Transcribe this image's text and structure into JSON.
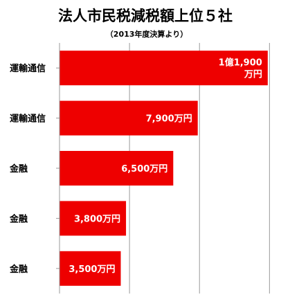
{
  "chart_data": {
    "type": "bar",
    "orientation": "horizontal",
    "title": "法人市民税減税額上位５社",
    "subtitle": "（2013年度決算より）",
    "categories": [
      "運輸通信",
      "運輸通信",
      "金融",
      "金融",
      "金融"
    ],
    "values": [
      11900,
      7900,
      6500,
      3800,
      3500
    ],
    "value_unit": "万円",
    "value_labels": [
      [
        "1億1,900",
        "万円"
      ],
      [
        "7,900万円"
      ],
      [
        "6,500万円"
      ],
      [
        "3,800万円"
      ],
      [
        "3,500万円"
      ]
    ],
    "xlim": [
      0,
      12500
    ],
    "grid": true,
    "bar_color": "#ee0000"
  }
}
